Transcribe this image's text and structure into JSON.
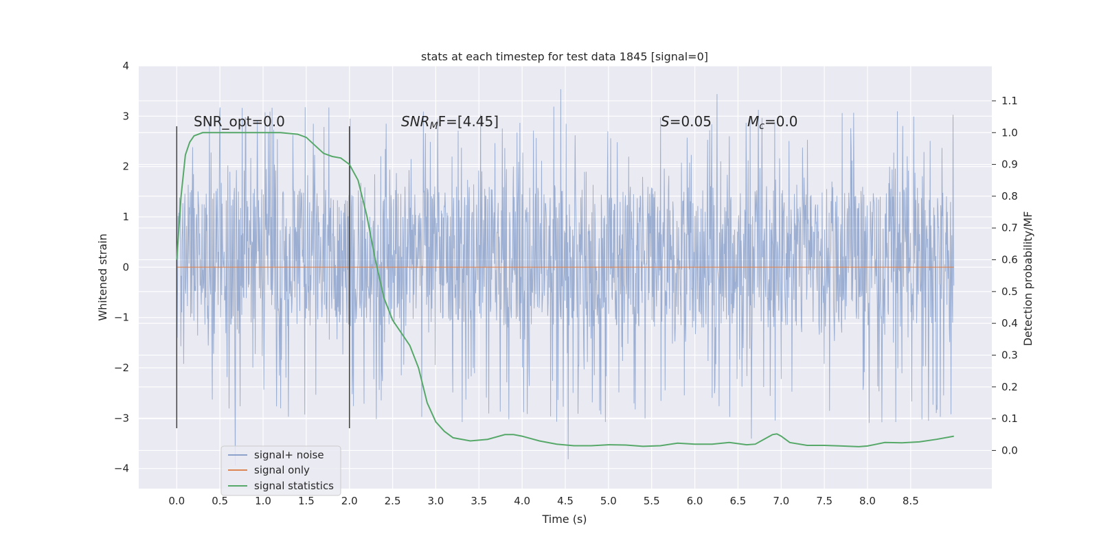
{
  "chart_data": {
    "type": "line",
    "title": "stats at each timestep for test data 1845 [signal=0]",
    "xlabel": "Time (s)",
    "ylabel": "Whitened strain",
    "y2label": "Detection probability/MF",
    "xlim": [
      -0.44,
      9.44
    ],
    "ylim": [
      -4.4,
      4.0
    ],
    "y2lim": [
      -0.12,
      1.21
    ],
    "xticks": [
      0.0,
      0.5,
      1.0,
      1.5,
      2.0,
      2.5,
      3.0,
      3.5,
      4.0,
      4.5,
      5.0,
      5.5,
      6.0,
      6.5,
      7.0,
      7.5,
      8.0,
      8.5
    ],
    "xtick_labels": [
      "0.0",
      "0.5",
      "1.0",
      "1.5",
      "2.0",
      "2.5",
      "3.0",
      "3.5",
      "4.0",
      "4.5",
      "5.0",
      "5.5",
      "6.0",
      "6.5",
      "7.0",
      "7.5",
      "8.0",
      "8.5"
    ],
    "yticks": [
      -4,
      -3,
      -2,
      -1,
      0,
      1,
      2,
      3,
      4
    ],
    "ytick_labels": [
      "−4",
      "−3",
      "−2",
      "−1",
      "0",
      "1",
      "2",
      "3",
      "4"
    ],
    "y2ticks": [
      0.0,
      0.1,
      0.2,
      0.3,
      0.4,
      0.5,
      0.6,
      0.7,
      0.8,
      0.9,
      1.0,
      1.1
    ],
    "y2tick_labels": [
      "0.0",
      "0.1",
      "0.2",
      "0.3",
      "0.4",
      "0.5",
      "0.6",
      "0.7",
      "0.8",
      "0.9",
      "1.0",
      "1.1"
    ],
    "annotations": {
      "snr_opt": "SNR_opt=0.0",
      "snr_mf_prefix": "SNR",
      "snr_mf_sub": "M",
      "snr_mf_suffix": "F=[4.45]",
      "s_sym": "S",
      "s_val": "=0.05",
      "mc_sym": "M",
      "mc_sub": "c",
      "mc_val": "=0.0"
    },
    "vlines_x": [
      0.0,
      2.0
    ],
    "vline_range": [
      -3.2,
      2.8
    ],
    "series": [
      {
        "name": "signal+ noise",
        "color": "#4c72b0",
        "opacity": 0.5,
        "x_range": [
          0.0,
          9.0
        ],
        "core_band": [
          -1.2,
          1.6
        ],
        "extreme_range": [
          -4.0,
          3.65
        ]
      },
      {
        "name": "signal only",
        "color": "#dd8452",
        "x": [
          0.0,
          9.0
        ],
        "y": [
          0.0,
          0.0
        ]
      },
      {
        "name": "signal statistics",
        "color": "#55a868",
        "axis": "right",
        "x": [
          0.0,
          0.05,
          0.1,
          0.15,
          0.2,
          0.3,
          0.5,
          0.8,
          1.0,
          1.2,
          1.4,
          1.5,
          1.6,
          1.7,
          1.8,
          1.9,
          2.0,
          2.1,
          2.2,
          2.3,
          2.4,
          2.5,
          2.6,
          2.7,
          2.8,
          2.9,
          3.0,
          3.1,
          3.2,
          3.4,
          3.6,
          3.8,
          3.9,
          4.0,
          4.2,
          4.4,
          4.6,
          4.8,
          5.0,
          5.2,
          5.4,
          5.6,
          5.8,
          6.0,
          6.2,
          6.4,
          6.6,
          6.7,
          6.8,
          6.9,
          6.95,
          7.0,
          7.1,
          7.3,
          7.5,
          7.7,
          7.9,
          8.0,
          8.2,
          8.4,
          8.6,
          8.8,
          9.0
        ],
        "y": [
          0.6,
          0.8,
          0.93,
          0.97,
          0.99,
          1.0,
          1.0,
          1.0,
          1.0,
          1.0,
          0.995,
          0.985,
          0.96,
          0.935,
          0.925,
          0.92,
          0.9,
          0.85,
          0.74,
          0.6,
          0.48,
          0.41,
          0.37,
          0.33,
          0.26,
          0.15,
          0.09,
          0.06,
          0.04,
          0.03,
          0.035,
          0.05,
          0.05,
          0.045,
          0.03,
          0.02,
          0.015,
          0.015,
          0.018,
          0.017,
          0.013,
          0.015,
          0.023,
          0.02,
          0.02,
          0.025,
          0.018,
          0.02,
          0.035,
          0.05,
          0.052,
          0.045,
          0.025,
          0.016,
          0.016,
          0.014,
          0.012,
          0.014,
          0.025,
          0.024,
          0.027,
          0.035,
          0.045
        ]
      }
    ],
    "legend": {
      "position": "lower-left",
      "entries": [
        "signal+ noise",
        "signal only",
        "signal statistics"
      ]
    }
  }
}
